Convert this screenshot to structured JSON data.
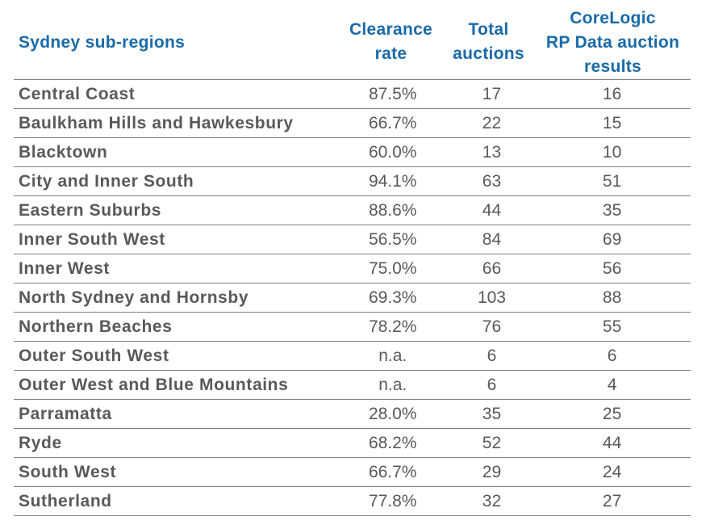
{
  "header": {
    "region": "Sydney sub-regions",
    "clearance": [
      "Clearance",
      "rate"
    ],
    "total": [
      "Total",
      "auctions"
    ],
    "corelogic": [
      "CoreLogic",
      "RP Data auction",
      "results"
    ]
  },
  "rows": [
    {
      "region": "Central Coast",
      "clearance": "87.5%",
      "total": "17",
      "results": "16"
    },
    {
      "region": "Baulkham Hills and Hawkesbury",
      "clearance": "66.7%",
      "total": "22",
      "results": "15"
    },
    {
      "region": "Blacktown",
      "clearance": "60.0%",
      "total": "13",
      "results": "10"
    },
    {
      "region": "City and Inner South",
      "clearance": "94.1%",
      "total": "63",
      "results": "51"
    },
    {
      "region": "Eastern Suburbs",
      "clearance": "88.6%",
      "total": "44",
      "results": "35"
    },
    {
      "region": "Inner South West",
      "clearance": "56.5%",
      "total": "84",
      "results": "69"
    },
    {
      "region": "Inner West",
      "clearance": "75.0%",
      "total": "66",
      "results": "56"
    },
    {
      "region": "North Sydney and Hornsby",
      "clearance": "69.3%",
      "total": "103",
      "results": "88"
    },
    {
      "region": "Northern Beaches",
      "clearance": "78.2%",
      "total": "76",
      "results": "55"
    },
    {
      "region": "Outer South West",
      "clearance": "n.a.",
      "total": "6",
      "results": "6"
    },
    {
      "region": "Outer West and Blue Mountains",
      "clearance": "n.a.",
      "total": "6",
      "results": "4"
    },
    {
      "region": "Parramatta",
      "clearance": "28.0%",
      "total": "35",
      "results": "25"
    },
    {
      "region": "Ryde",
      "clearance": "68.2%",
      "total": "52",
      "results": "44"
    },
    {
      "region": "South West",
      "clearance": "66.7%",
      "total": "29",
      "results": "24"
    },
    {
      "region": "Sutherland",
      "clearance": "77.8%",
      "total": "32",
      "results": "27"
    }
  ]
}
